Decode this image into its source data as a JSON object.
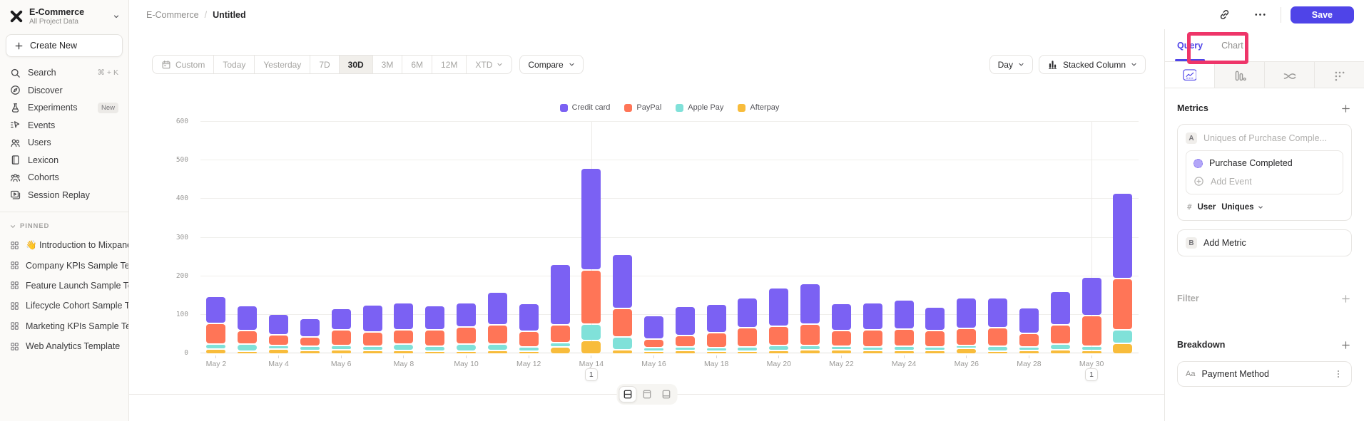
{
  "header": {
    "breadcrumb": [
      "E-Commerce",
      "Untitled"
    ],
    "separator": "/",
    "save_label": "Save"
  },
  "sidebar": {
    "project_name": "E-Commerce",
    "project_scope": "All Project Data",
    "create_new_label": "Create New",
    "nav": [
      {
        "icon": "search-icon",
        "label": "Search",
        "shortcut": "⌘ + K"
      },
      {
        "icon": "discover-icon",
        "label": "Discover"
      },
      {
        "icon": "experiments-icon",
        "label": "Experiments",
        "badge": "New"
      },
      {
        "icon": "events-icon",
        "label": "Events"
      },
      {
        "icon": "users-icon",
        "label": "Users"
      },
      {
        "icon": "lexicon-icon",
        "label": "Lexicon"
      },
      {
        "icon": "cohorts-icon",
        "label": "Cohorts"
      },
      {
        "icon": "session-replay-icon",
        "label": "Session Replay"
      }
    ],
    "pinned_header": "PINNED",
    "pinned": [
      "👋 Introduction to Mixpanel Bo",
      "Company KPIs Sample Templat",
      "Feature Launch Sample Templa",
      "Lifecycle Cohort Sample Temp",
      "Marketing KPIs Sample Templat",
      "Web Analytics Template"
    ]
  },
  "toolbar": {
    "date_ranges": [
      "Custom",
      "Today",
      "Yesterday",
      "7D",
      "30D",
      "3M",
      "6M",
      "12M",
      "XTD"
    ],
    "active_range": "30D",
    "compare_label": "Compare",
    "interval_label": "Day",
    "chart_type_label": "Stacked Column"
  },
  "chart_data": {
    "type": "bar",
    "stacked": true,
    "x": [
      "May 2",
      "May 3",
      "May 4",
      "May 5",
      "May 6",
      "May 7",
      "May 8",
      "May 9",
      "May 10",
      "May 11",
      "May 12",
      "May 13",
      "May 14",
      "May 15",
      "May 16",
      "May 17",
      "May 18",
      "May 19",
      "May 20",
      "May 21",
      "May 22",
      "May 23",
      "May 24",
      "May 25",
      "May 26",
      "May 27",
      "May 28",
      "May 29",
      "May 30",
      "May 31"
    ],
    "x_tick_step": 2,
    "series": [
      {
        "name": "Credit card",
        "color": "#7b61f3",
        "values": [
          70,
          65,
          53,
          47,
          55,
          71,
          70,
          63,
          63,
          85,
          73,
          158,
          264,
          140,
          61,
          75,
          74,
          78,
          99,
          105,
          70,
          69,
          75,
          62,
          79,
          78,
          67,
          86,
          100,
          221
        ]
      },
      {
        "name": "PayPal",
        "color": "#ff7557",
        "values": [
          55,
          35,
          28,
          25,
          41,
          37,
          38,
          42,
          45,
          50,
          40,
          45,
          140,
          75,
          23,
          30,
          38,
          50,
          50,
          55,
          40,
          45,
          45,
          42,
          45,
          48,
          35,
          50,
          80,
          133
        ]
      },
      {
        "name": "Apple Pay",
        "color": "#80e1d9",
        "values": [
          12,
          18,
          9,
          11,
          11,
          11,
          15,
          12,
          17,
          15,
          10,
          12,
          42,
          32,
          6,
          8,
          8,
          10,
          12,
          10,
          6,
          8,
          10,
          8,
          8,
          12,
          8,
          14,
          10,
          36
        ]
      },
      {
        "name": "Afterpay",
        "color": "#f8bc3b",
        "values": [
          13,
          7,
          13,
          9,
          11,
          9,
          10,
          8,
          8,
          10,
          5,
          18,
          35,
          12,
          8,
          10,
          6,
          8,
          10,
          12,
          12,
          10,
          10,
          10,
          14,
          8,
          10,
          12,
          10,
          27
        ]
      }
    ],
    "ylim": [
      0,
      600
    ],
    "yticks": [
      0,
      100,
      200,
      300,
      400,
      500,
      600
    ],
    "grid": true,
    "legend_position": "top",
    "annotations": [
      {
        "x": "May 14",
        "label": "1"
      },
      {
        "x": "May 30",
        "label": "1"
      }
    ]
  },
  "layout_switcher": {
    "options": [
      "split-view",
      "chart-only",
      "table-only"
    ],
    "active": "split-view"
  },
  "right_panel": {
    "tabs": [
      {
        "label": "Query",
        "active": true
      },
      {
        "label": "Chart",
        "active": false
      }
    ],
    "highlight_color": "#ee3569",
    "view_tabs": [
      {
        "icon": "insights-chart-icon",
        "active": true
      },
      {
        "icon": "bar-metric-icon",
        "active": false
      },
      {
        "icon": "flow-icon",
        "active": false
      },
      {
        "icon": "retention-grid-icon",
        "active": false
      }
    ],
    "metrics": {
      "section_label": "Metrics",
      "row_letter": "A",
      "placeholder": "Uniques of Purchase Comple...",
      "event_name": "Purchase Completed",
      "add_event_label": "Add Event",
      "count_symbol": "#",
      "entity": "User",
      "aggregation": "Uniques",
      "add_metric_letter": "B",
      "add_metric_label": "Add Metric"
    },
    "filter": {
      "section_label": "Filter"
    },
    "breakdown": {
      "section_label": "Breakdown",
      "property_badge": "Aa",
      "property_name": "Payment Method"
    }
  },
  "colors": {
    "accent": "#4f44e8",
    "annotation_highlight": "#ee3569"
  }
}
